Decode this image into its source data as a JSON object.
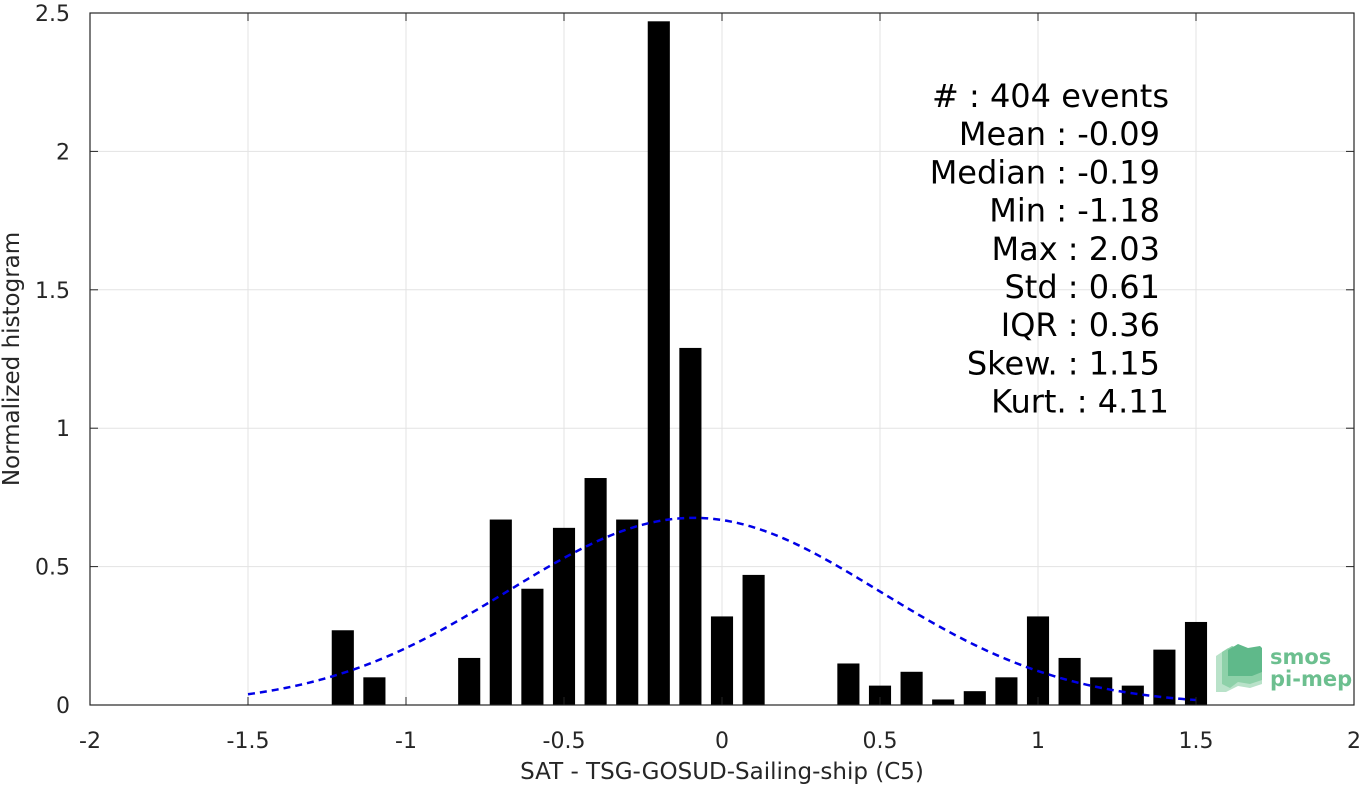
{
  "chart_data": {
    "type": "bar",
    "xlabel": "SAT - TSG-GOSUD-Sailing-ship (C5)",
    "ylabel": "Normalized histogram",
    "xlim": [
      -2,
      2
    ],
    "ylim": [
      0,
      2.5
    ],
    "xticks": [
      -2,
      -1.5,
      -1,
      -0.5,
      0,
      0.5,
      1,
      1.5,
      2
    ],
    "xtick_labels": [
      "-2",
      "-1.5",
      "-1",
      "-0.5",
      "0",
      "0.5",
      "1",
      "1.5",
      "2"
    ],
    "yticks": [
      0,
      0.5,
      1,
      1.5,
      2,
      2.5
    ],
    "ytick_labels": [
      "0",
      "0.5",
      "1",
      "1.5",
      "2",
      "2.5"
    ],
    "grid": true,
    "bar_width": 0.07,
    "bars": [
      {
        "x": -1.2,
        "y": 0.27
      },
      {
        "x": -1.1,
        "y": 0.1
      },
      {
        "x": -0.8,
        "y": 0.17
      },
      {
        "x": -0.7,
        "y": 0.67
      },
      {
        "x": -0.6,
        "y": 0.42
      },
      {
        "x": -0.5,
        "y": 0.64
      },
      {
        "x": -0.4,
        "y": 0.82
      },
      {
        "x": -0.3,
        "y": 0.67
      },
      {
        "x": -0.2,
        "y": 2.47
      },
      {
        "x": -0.1,
        "y": 1.29
      },
      {
        "x": 0.0,
        "y": 0.32
      },
      {
        "x": 0.1,
        "y": 0.47
      },
      {
        "x": 0.4,
        "y": 0.15
      },
      {
        "x": 0.5,
        "y": 0.07
      },
      {
        "x": 0.6,
        "y": 0.12
      },
      {
        "x": 0.7,
        "y": 0.02
      },
      {
        "x": 0.8,
        "y": 0.05
      },
      {
        "x": 0.9,
        "y": 0.1
      },
      {
        "x": 1.0,
        "y": 0.32
      },
      {
        "x": 1.1,
        "y": 0.17
      },
      {
        "x": 1.2,
        "y": 0.1
      },
      {
        "x": 1.3,
        "y": 0.07
      },
      {
        "x": 1.4,
        "y": 0.2
      },
      {
        "x": 1.5,
        "y": 0.3
      }
    ],
    "fit_curve": {
      "style": "dashed",
      "color": "#0000e6",
      "mean": -0.09,
      "std": 0.59,
      "x_range": [
        -1.5,
        1.5
      ]
    },
    "bar_color": "#000000",
    "stats": [
      "#  : 404 events",
      "Mean : -0.09",
      "Median : -0.19",
      "Min : -1.18",
      "Max : 2.03",
      "Std : 0.61",
      "IQR : 0.36",
      "Skew. : 1.15",
      "Kurt. : 4.11"
    ]
  },
  "logo": {
    "line1": "smos",
    "line2": "pi-mep",
    "color": "#6cbf8f"
  }
}
